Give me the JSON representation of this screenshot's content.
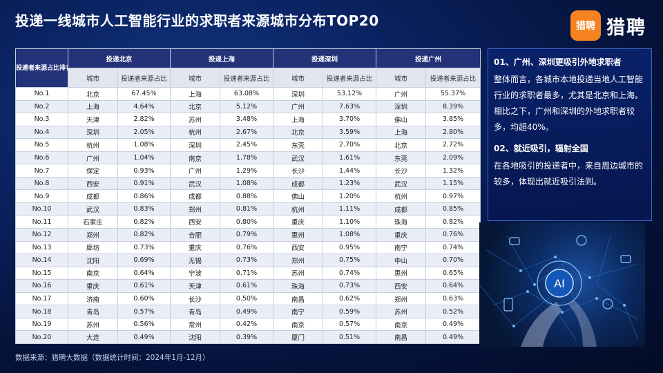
{
  "title": "投递一线城市人工智能行业的求职者来源城市分布TOP20",
  "brand": {
    "logo_text": "猎聘",
    "name": "猎聘"
  },
  "table": {
    "rank_header": "投递者来源占比排名",
    "groups": [
      "投递北京",
      "投递上海",
      "投递深圳",
      "投递广州"
    ],
    "sub_headers": [
      "城市",
      "投递者来源占比"
    ],
    "rows": [
      [
        "No.1",
        "北京",
        "67.45%",
        "上海",
        "63.08%",
        "深圳",
        "53.12%",
        "广州",
        "55.37%"
      ],
      [
        "No.2",
        "上海",
        "4.64%",
        "北京",
        "5.12%",
        "广州",
        "7.63%",
        "深圳",
        "8.39%"
      ],
      [
        "No.3",
        "天津",
        "2.82%",
        "苏州",
        "3.48%",
        "上海",
        "3.70%",
        "佛山",
        "3.85%"
      ],
      [
        "No.4",
        "深圳",
        "2.05%",
        "杭州",
        "2.67%",
        "北京",
        "3.59%",
        "上海",
        "2.80%"
      ],
      [
        "No.5",
        "杭州",
        "1.08%",
        "深圳",
        "2.45%",
        "东莞",
        "2.70%",
        "北京",
        "2.72%"
      ],
      [
        "No.6",
        "广州",
        "1.04%",
        "南京",
        "1.78%",
        "武汉",
        "1.61%",
        "东莞",
        "2.09%"
      ],
      [
        "No.7",
        "保定",
        "0.93%",
        "广州",
        "1.29%",
        "长沙",
        "1.44%",
        "长沙",
        "1.32%"
      ],
      [
        "No.8",
        "西安",
        "0.91%",
        "武汉",
        "1.08%",
        "成都",
        "1.23%",
        "武汉",
        "1.15%"
      ],
      [
        "No.9",
        "成都",
        "0.86%",
        "成都",
        "0.88%",
        "佛山",
        "1.20%",
        "杭州",
        "0.97%"
      ],
      [
        "No.10",
        "武汉",
        "0.83%",
        "郑州",
        "0.81%",
        "杭州",
        "1.11%",
        "成都",
        "0.85%"
      ],
      [
        "No.11",
        "石家庄",
        "0.82%",
        "西安",
        "0.80%",
        "重庆",
        "1.10%",
        "珠海",
        "0.82%"
      ],
      [
        "No.12",
        "郑州",
        "0.82%",
        "合肥",
        "0.79%",
        "惠州",
        "1.08%",
        "重庆",
        "0.76%"
      ],
      [
        "No.13",
        "廊坊",
        "0.73%",
        "重庆",
        "0.76%",
        "西安",
        "0.95%",
        "南宁",
        "0.74%"
      ],
      [
        "No.14",
        "沈阳",
        "0.69%",
        "无锡",
        "0.73%",
        "郑州",
        "0.75%",
        "中山",
        "0.70%"
      ],
      [
        "No.15",
        "南京",
        "0.64%",
        "宁波",
        "0.71%",
        "苏州",
        "0.74%",
        "惠州",
        "0.65%"
      ],
      [
        "No.16",
        "重庆",
        "0.61%",
        "天津",
        "0.61%",
        "珠海",
        "0.73%",
        "西安",
        "0.64%"
      ],
      [
        "No.17",
        "济南",
        "0.60%",
        "长沙",
        "0.50%",
        "南昌",
        "0.62%",
        "郑州",
        "0.63%"
      ],
      [
        "No.18",
        "青岛",
        "0.57%",
        "青岛",
        "0.49%",
        "南宁",
        "0.59%",
        "苏州",
        "0.52%"
      ],
      [
        "No.19",
        "苏州",
        "0.56%",
        "常州",
        "0.42%",
        "南京",
        "0.57%",
        "南京",
        "0.49%"
      ],
      [
        "No.20",
        "大连",
        "0.49%",
        "沈阳",
        "0.39%",
        "厦门",
        "0.51%",
        "南昌",
        "0.49%"
      ]
    ]
  },
  "insights": [
    {
      "heading": "01、广州、深圳更吸引外地求职者",
      "body": "整体而言，各城市本地投递当地人工智能行业的求职者最多，尤其是北京和上海。相比之下，广州和深圳的外地求职者较多，均超40%。"
    },
    {
      "heading": "02、就近吸引，辐射全国",
      "body": "在各地吸引的投递者中，来自周边城市的较多，体现出就近吸引法则。"
    }
  ],
  "image": {
    "label": "AI"
  },
  "footer": "数据来源：猎聘大数据（数据统计时间：2024年1月-12月）",
  "colors": {
    "header_bg": "#24327a",
    "accent": "#f58220",
    "panel_border": "#3a66c4"
  }
}
